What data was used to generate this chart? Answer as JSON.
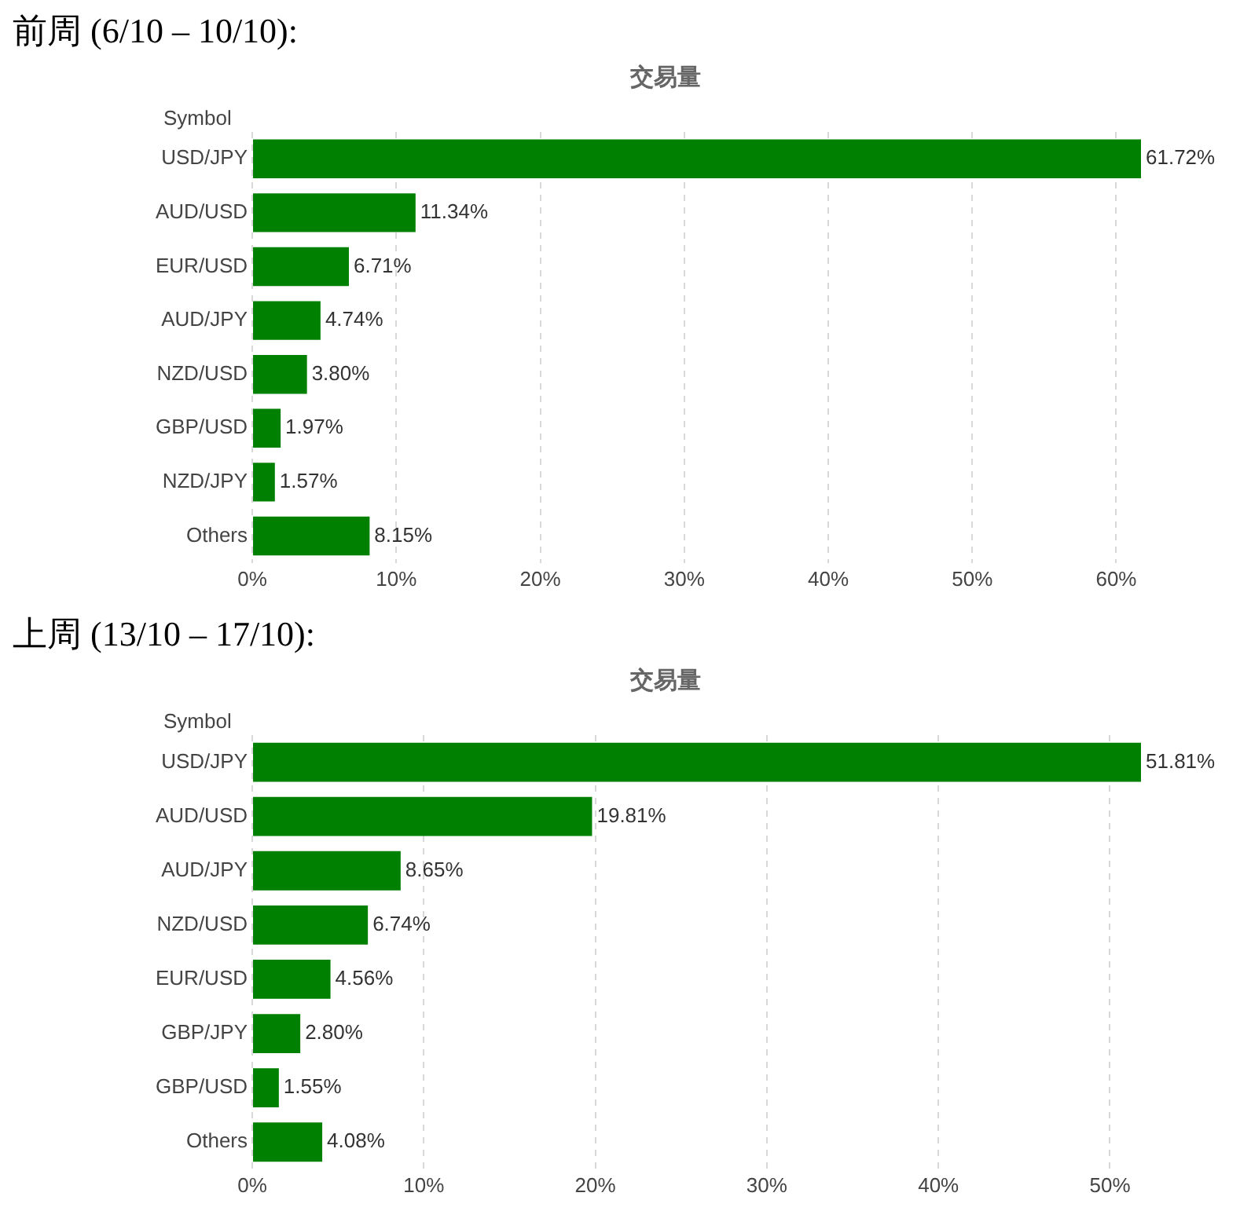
{
  "chart_data": [
    {
      "type": "bar",
      "orientation": "horizontal",
      "title": "前周 (6/10 – 10/10):",
      "subtitle": "交易量",
      "ylabel": "Symbol",
      "categories": [
        "USD/JPY",
        "AUD/USD",
        "EUR/USD",
        "AUD/JPY",
        "NZD/USD",
        "GBP/USD",
        "NZD/JPY",
        "Others"
      ],
      "values": [
        61.72,
        11.34,
        6.71,
        4.74,
        3.8,
        1.97,
        1.57,
        8.15
      ],
      "value_labels": [
        "61.72%",
        "11.34%",
        "6.71%",
        "4.74%",
        "3.80%",
        "1.97%",
        "1.57%",
        "8.15%"
      ],
      "color": "#008000",
      "xlim": [
        0,
        61.72
      ],
      "xticks": [
        {
          "value": 0,
          "label": "0%"
        },
        {
          "value": 10,
          "label": "10%"
        },
        {
          "value": 20,
          "label": "20%"
        },
        {
          "value": 30,
          "label": "30%"
        },
        {
          "value": 40,
          "label": "40%"
        },
        {
          "value": 50,
          "label": "50%"
        },
        {
          "value": 60,
          "label": "60%"
        }
      ],
      "grid": "x",
      "legend": false
    },
    {
      "type": "bar",
      "orientation": "horizontal",
      "title": "上周 (13/10 – 17/10):",
      "subtitle": "交易量",
      "ylabel": "Symbol",
      "categories": [
        "USD/JPY",
        "AUD/USD",
        "AUD/JPY",
        "NZD/USD",
        "EUR/USD",
        "GBP/JPY",
        "GBP/USD",
        "Others"
      ],
      "values": [
        51.81,
        19.81,
        8.65,
        6.74,
        4.56,
        2.8,
        1.55,
        4.08
      ],
      "value_labels": [
        "51.81%",
        "19.81%",
        "8.65%",
        "6.74%",
        "4.56%",
        "2.80%",
        "1.55%",
        "4.08%"
      ],
      "color": "#008000",
      "xlim": [
        0,
        51.81
      ],
      "xticks": [
        {
          "value": 0,
          "label": "0%"
        },
        {
          "value": 10,
          "label": "10%"
        },
        {
          "value": 20,
          "label": "20%"
        },
        {
          "value": 30,
          "label": "30%"
        },
        {
          "value": 40,
          "label": "40%"
        },
        {
          "value": 50,
          "label": "50%"
        }
      ],
      "grid": "x",
      "legend": false
    }
  ]
}
